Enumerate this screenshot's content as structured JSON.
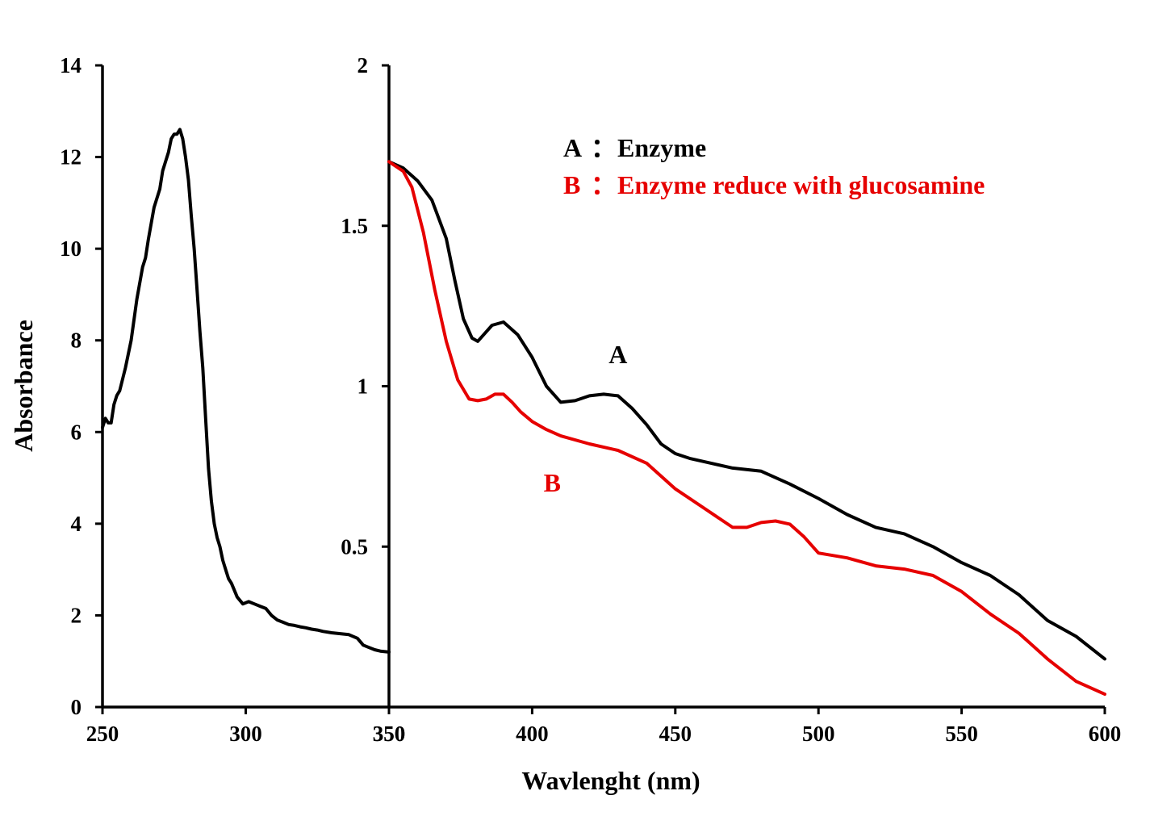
{
  "colors": {
    "black": "#000000",
    "red": "#e60000"
  },
  "chart_data": [
    {
      "type": "line",
      "panel": "left",
      "xlim": [
        250,
        350
      ],
      "ylim": [
        0,
        14
      ],
      "xticks": [
        250,
        300,
        350
      ],
      "xtick_labels": [
        "250",
        "300",
        "350"
      ],
      "yticks": [
        0,
        2,
        4,
        6,
        8,
        10,
        12,
        14
      ],
      "ytick_labels": [
        "0",
        "2",
        "4",
        "6",
        "8",
        "10",
        "12",
        "14"
      ],
      "ylabel": "Absorbance",
      "series": [
        {
          "color": "#000000",
          "x": [
            250,
            251,
            252,
            253,
            254,
            255,
            256,
            258,
            260,
            262,
            264,
            265,
            266,
            268,
            270,
            271,
            272,
            273,
            274,
            275,
            276,
            277,
            278,
            279,
            280,
            281,
            282,
            283,
            284,
            285,
            286,
            287,
            288,
            289,
            290,
            291,
            292,
            293,
            294,
            295,
            297,
            299,
            301,
            303,
            305,
            307,
            309,
            311,
            313,
            315,
            317,
            319,
            321,
            323,
            325,
            327,
            330,
            333,
            336,
            339,
            341,
            343,
            345,
            347,
            350
          ],
          "y": [
            6.1,
            6.3,
            6.2,
            6.2,
            6.6,
            6.8,
            6.9,
            7.4,
            8.0,
            8.9,
            9.6,
            9.8,
            10.2,
            10.9,
            11.3,
            11.7,
            11.9,
            12.1,
            12.4,
            12.5,
            12.5,
            12.6,
            12.4,
            12.0,
            11.5,
            10.7,
            10.0,
            9.1,
            8.2,
            7.4,
            6.3,
            5.2,
            4.5,
            4.0,
            3.7,
            3.5,
            3.2,
            3.0,
            2.8,
            2.7,
            2.4,
            2.25,
            2.3,
            2.25,
            2.2,
            2.15,
            2.0,
            1.9,
            1.85,
            1.8,
            1.78,
            1.75,
            1.73,
            1.7,
            1.68,
            1.65,
            1.62,
            1.6,
            1.58,
            1.5,
            1.35,
            1.3,
            1.25,
            1.22,
            1.2
          ]
        }
      ]
    },
    {
      "type": "line",
      "panel": "right",
      "xlim": [
        350,
        600
      ],
      "ylim": [
        0,
        2
      ],
      "xticks": [
        350,
        400,
        450,
        500,
        550,
        600
      ],
      "xtick_labels": [
        "350",
        "400",
        "450",
        "500",
        "550",
        "600"
      ],
      "yticks": [
        0.5,
        1,
        1.5,
        2
      ],
      "ytick_labels": [
        "0.5",
        "1",
        "1.5",
        "2"
      ],
      "xlabel": "Wavlenght (nm)",
      "legend_placement": "top-right",
      "legend": [
        {
          "letter": "A",
          "sep": "：",
          "text": "Enzyme",
          "color": "#000000"
        },
        {
          "letter": "B",
          "sep": "：",
          "text": "Enzyme reduce with glucosamine",
          "color": "#e60000"
        }
      ],
      "series": [
        {
          "label": "A",
          "color": "#000000",
          "label_at": [
            430,
            1.1
          ],
          "x": [
            350,
            355,
            360,
            365,
            370,
            373,
            376,
            379,
            381,
            383,
            386,
            390,
            395,
            400,
            405,
            410,
            415,
            420,
            425,
            430,
            435,
            440,
            445,
            450,
            455,
            460,
            470,
            480,
            490,
            500,
            510,
            520,
            530,
            540,
            550,
            560,
            570,
            580,
            590,
            600
          ],
          "y": [
            1.7,
            1.68,
            1.64,
            1.58,
            1.46,
            1.33,
            1.21,
            1.15,
            1.14,
            1.16,
            1.19,
            1.2,
            1.16,
            1.09,
            1.0,
            0.95,
            0.955,
            0.97,
            0.975,
            0.97,
            0.93,
            0.88,
            0.82,
            0.79,
            0.775,
            0.765,
            0.745,
            0.735,
            0.695,
            0.65,
            0.6,
            0.56,
            0.54,
            0.5,
            0.45,
            0.41,
            0.35,
            0.27,
            0.22,
            0.15
          ]
        },
        {
          "label": "B",
          "color": "#e60000",
          "label_at": [
            407,
            0.7
          ],
          "x": [
            350,
            355,
            358,
            362,
            366,
            370,
            374,
            378,
            381,
            384,
            387,
            390,
            393,
            396,
            400,
            405,
            410,
            420,
            430,
            440,
            450,
            460,
            470,
            475,
            480,
            485,
            490,
            495,
            500,
            510,
            520,
            530,
            540,
            550,
            560,
            570,
            580,
            590,
            600
          ],
          "y": [
            1.7,
            1.67,
            1.62,
            1.48,
            1.3,
            1.14,
            1.02,
            0.96,
            0.955,
            0.96,
            0.975,
            0.975,
            0.95,
            0.92,
            0.89,
            0.865,
            0.845,
            0.82,
            0.8,
            0.76,
            0.68,
            0.62,
            0.56,
            0.56,
            0.575,
            0.58,
            0.57,
            0.53,
            0.48,
            0.465,
            0.44,
            0.43,
            0.41,
            0.36,
            0.29,
            0.23,
            0.15,
            0.08,
            0.04
          ]
        }
      ]
    }
  ]
}
